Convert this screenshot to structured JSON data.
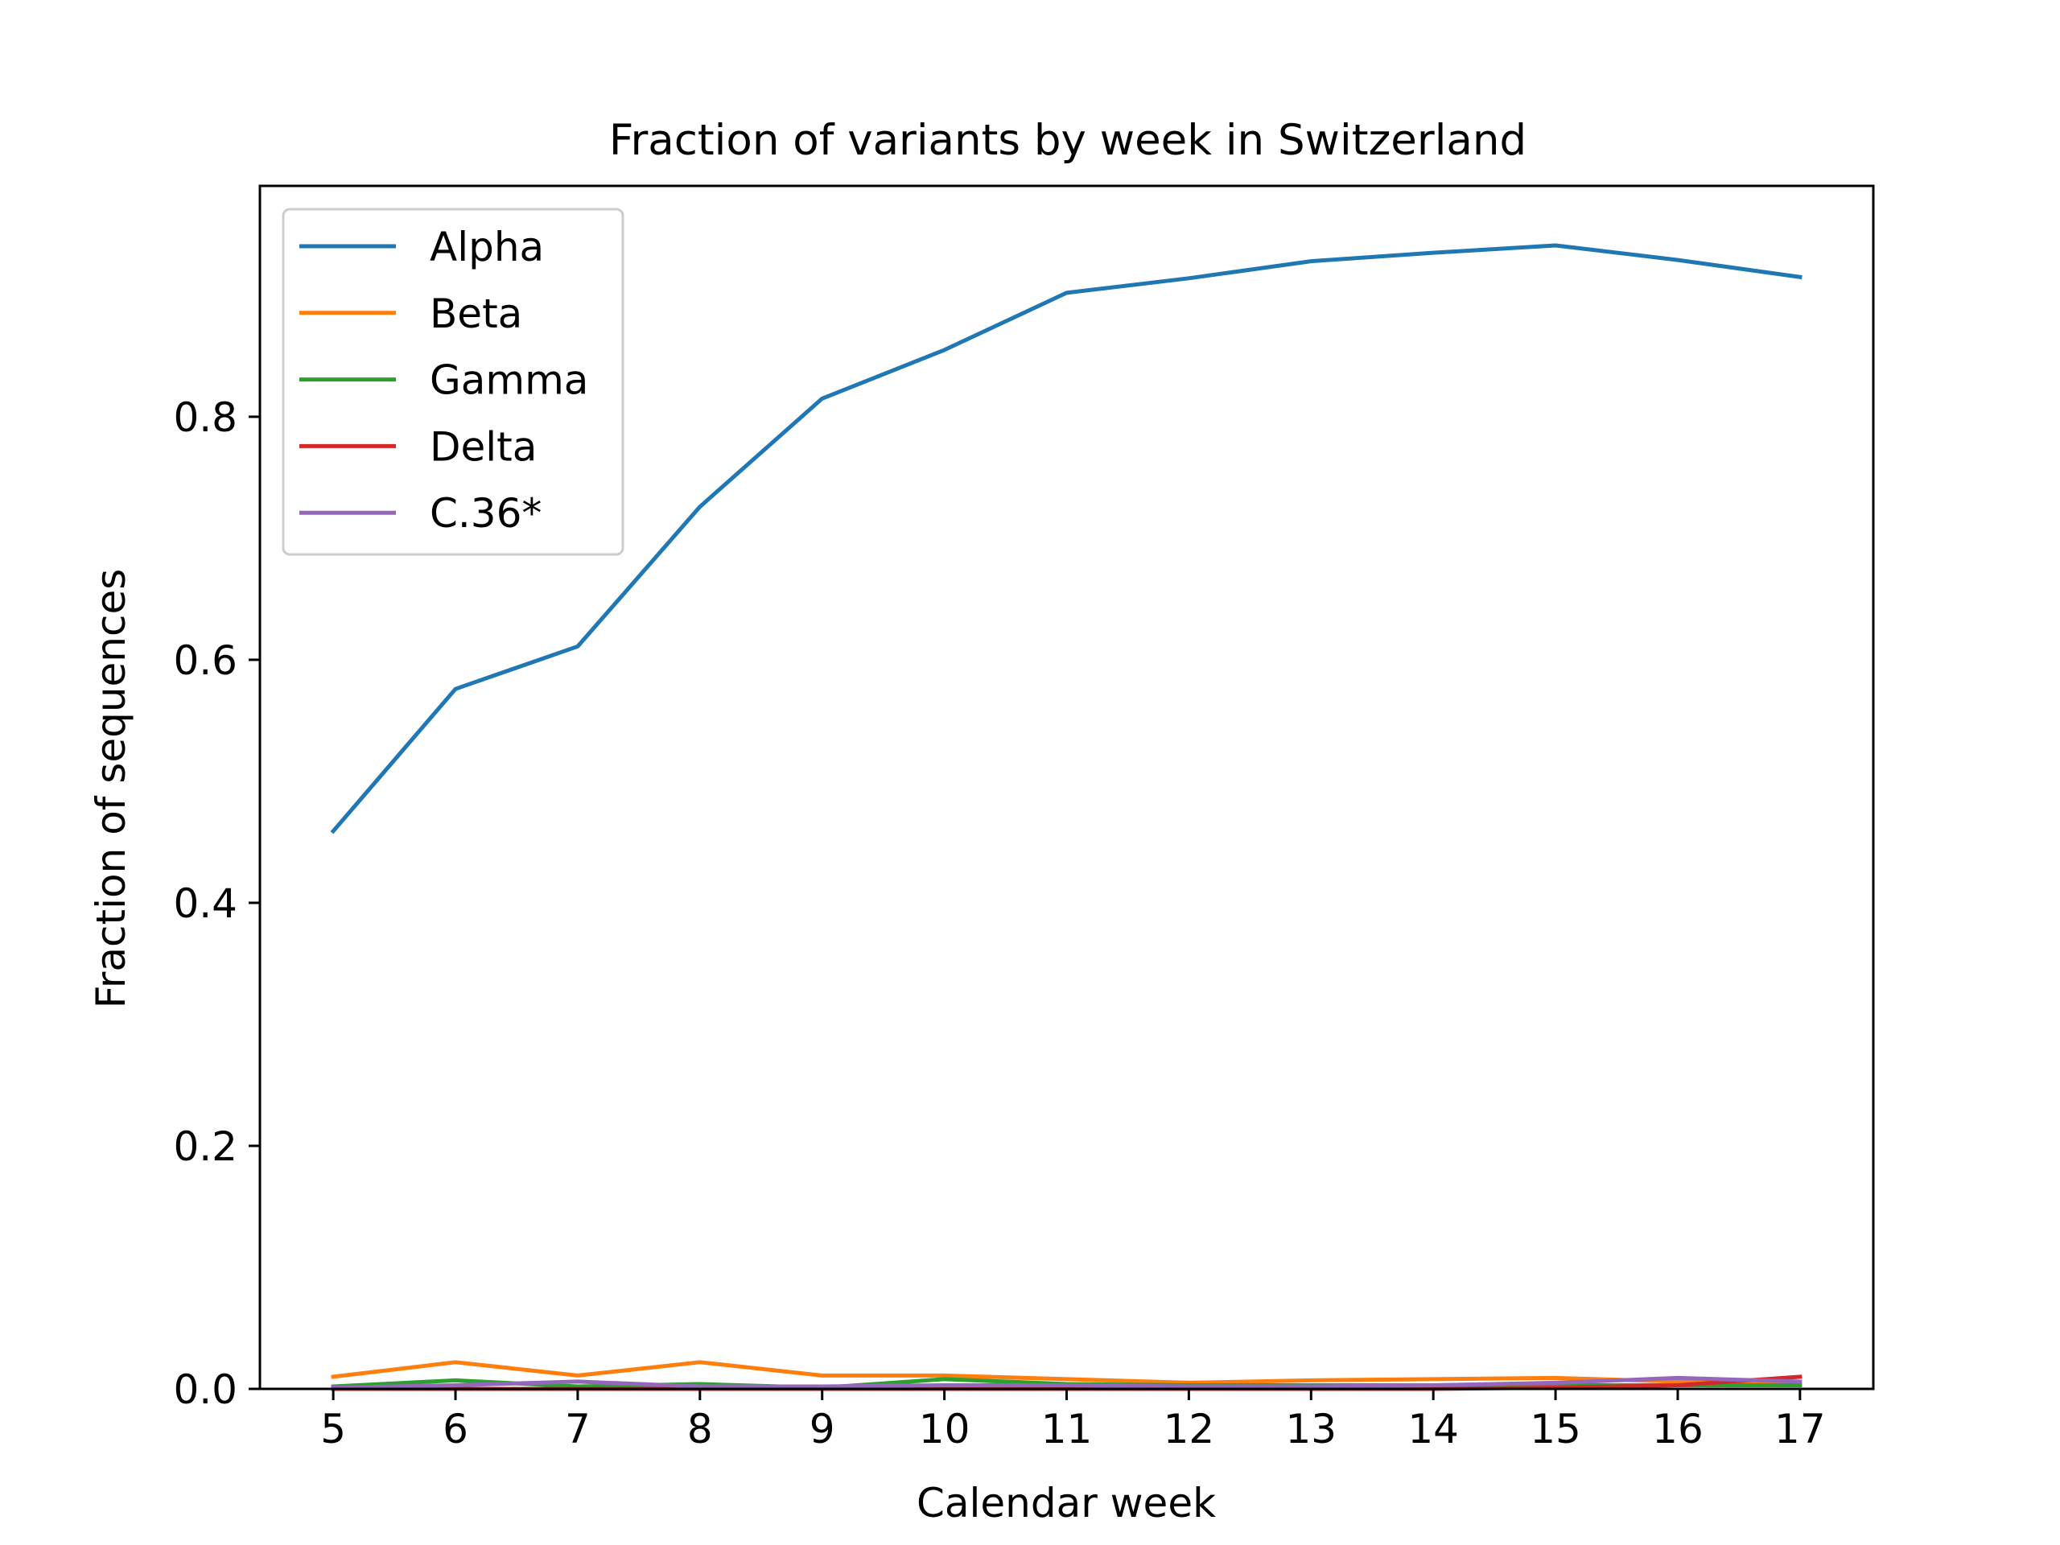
{
  "chart_data": {
    "type": "line",
    "title": "Fraction of variants by week in Switzerland",
    "xlabel": "Calendar week",
    "ylabel": "Fraction of sequences",
    "x": [
      5,
      6,
      7,
      8,
      9,
      10,
      11,
      12,
      13,
      14,
      15,
      16,
      17
    ],
    "xlim": [
      4.4,
      17.6
    ],
    "ylim": [
      0.0,
      0.99
    ],
    "yticks": [
      0.0,
      0.2,
      0.4,
      0.6,
      0.8
    ],
    "ytick_labels": [
      "0.0",
      "0.2",
      "0.4",
      "0.6",
      "0.8"
    ],
    "grid": false,
    "legend_position": "upper-left",
    "series": [
      {
        "name": "Alpha",
        "color": "#1f77b4",
        "values": [
          0.459,
          0.576,
          0.611,
          0.726,
          0.815,
          0.855,
          0.902,
          0.914,
          0.928,
          0.935,
          0.941,
          0.929,
          0.915
        ]
      },
      {
        "name": "Beta",
        "color": "#ff7f0e",
        "values": [
          0.01,
          0.022,
          0.011,
          0.022,
          0.011,
          0.011,
          0.008,
          0.005,
          0.007,
          0.008,
          0.009,
          0.006,
          0.004
        ]
      },
      {
        "name": "Gamma",
        "color": "#2ca02c",
        "values": [
          0.002,
          0.007,
          0.002,
          0.004,
          0.001,
          0.008,
          0.004,
          0.003,
          0.003,
          0.003,
          0.003,
          0.003,
          0.003
        ]
      },
      {
        "name": "Delta",
        "color": "#d62728",
        "values": [
          0.0,
          0.0,
          0.0,
          0.0,
          0.0,
          0.0,
          0.0,
          0.0,
          0.0,
          0.0,
          0.001,
          0.003,
          0.01
        ]
      },
      {
        "name": "C.36*",
        "color": "#9467bd",
        "values": [
          0.001,
          0.003,
          0.006,
          0.002,
          0.002,
          0.003,
          0.003,
          0.002,
          0.002,
          0.003,
          0.005,
          0.009,
          0.006
        ]
      }
    ]
  }
}
